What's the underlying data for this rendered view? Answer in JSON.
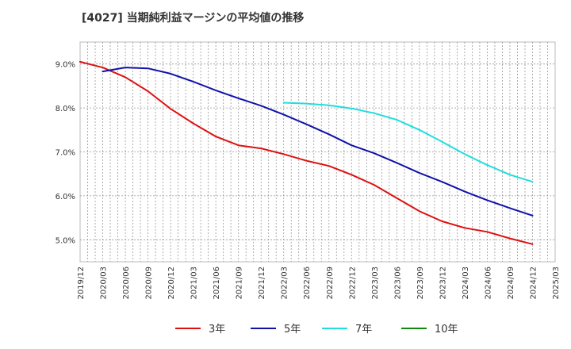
{
  "chart_data": {
    "type": "line",
    "title": "[4027]  当期純利益マージンの平均値の推移",
    "x_ticks": [
      "2019/12",
      "2020/03",
      "2020/06",
      "2020/09",
      "2020/12",
      "2021/03",
      "2021/06",
      "2021/09",
      "2021/12",
      "2022/03",
      "2022/06",
      "2022/09",
      "2022/12",
      "2023/03",
      "2023/06",
      "2023/09",
      "2023/12",
      "2024/03",
      "2024/06",
      "2024/09",
      "2024/12",
      "2025/03"
    ],
    "y_ticks": [
      5.0,
      6.0,
      7.0,
      8.0,
      9.0
    ],
    "y_tick_labels": [
      "5.0%",
      "6.0%",
      "7.0%",
      "8.0%",
      "9.0%"
    ],
    "ylim": [
      4.5,
      9.5
    ],
    "grid": true,
    "legend_position": "bottom",
    "series": [
      {
        "name": "3年",
        "color": "#dd1111",
        "x": [
          "2019/12",
          "2020/03",
          "2020/06",
          "2020/09",
          "2020/12",
          "2021/03",
          "2021/06",
          "2021/09",
          "2021/12",
          "2022/03",
          "2022/06",
          "2022/09",
          "2022/12",
          "2023/03",
          "2023/06",
          "2023/09",
          "2023/12",
          "2024/03",
          "2024/06",
          "2024/09",
          "2024/12"
        ],
        "values": [
          9.05,
          8.92,
          8.7,
          8.38,
          7.98,
          7.65,
          7.35,
          7.15,
          7.08,
          6.95,
          6.8,
          6.68,
          6.48,
          6.25,
          5.95,
          5.65,
          5.42,
          5.27,
          5.18,
          5.03,
          4.9
        ]
      },
      {
        "name": "5年",
        "color": "#1111aa",
        "x": [
          "2020/03",
          "2020/06",
          "2020/09",
          "2020/12",
          "2021/03",
          "2021/06",
          "2021/09",
          "2021/12",
          "2022/03",
          "2022/06",
          "2022/09",
          "2022/12",
          "2023/03",
          "2023/06",
          "2023/09",
          "2023/12",
          "2024/03",
          "2024/06",
          "2024/09",
          "2024/12"
        ],
        "values": [
          8.83,
          8.92,
          8.9,
          8.78,
          8.6,
          8.4,
          8.22,
          8.05,
          7.85,
          7.63,
          7.4,
          7.15,
          6.97,
          6.75,
          6.52,
          6.32,
          6.1,
          5.9,
          5.72,
          5.55
        ]
      },
      {
        "name": "7年",
        "color": "#22dddd",
        "x": [
          "2022/03",
          "2022/06",
          "2022/09",
          "2022/12",
          "2023/03",
          "2023/06",
          "2023/09",
          "2023/12",
          "2024/03",
          "2024/06",
          "2024/09",
          "2024/12"
        ],
        "values": [
          8.12,
          8.1,
          8.06,
          7.99,
          7.88,
          7.73,
          7.5,
          7.23,
          6.95,
          6.7,
          6.48,
          6.32
        ]
      },
      {
        "name": "10年",
        "color": "#118811",
        "x": [],
        "values": []
      }
    ]
  }
}
